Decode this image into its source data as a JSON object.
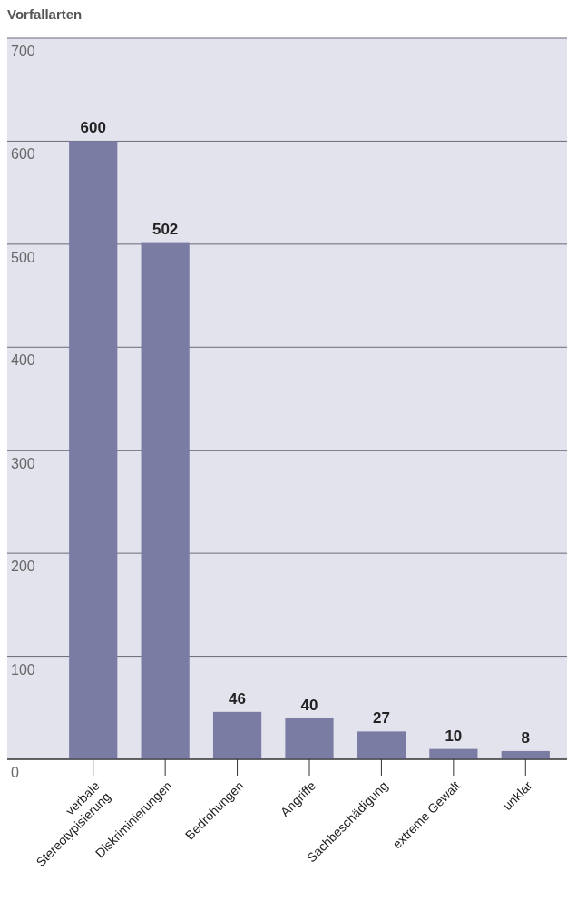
{
  "chart_data": {
    "type": "bar",
    "title": "Vorfallarten",
    "categories": [
      "verbale\nStereotypisierung",
      "Diskriminierungen",
      "Bedrohungen",
      "Angriffe",
      "Sachbeschädigung",
      "extreme Gewalt",
      "unklar"
    ],
    "values": [
      600,
      502,
      46,
      40,
      27,
      10,
      8
    ],
    "color": "#7b7ca3",
    "ylim": [
      0,
      700
    ],
    "yticks": [
      0,
      100,
      200,
      300,
      400,
      500,
      600,
      700
    ],
    "grid": "y",
    "data_labels": true
  }
}
